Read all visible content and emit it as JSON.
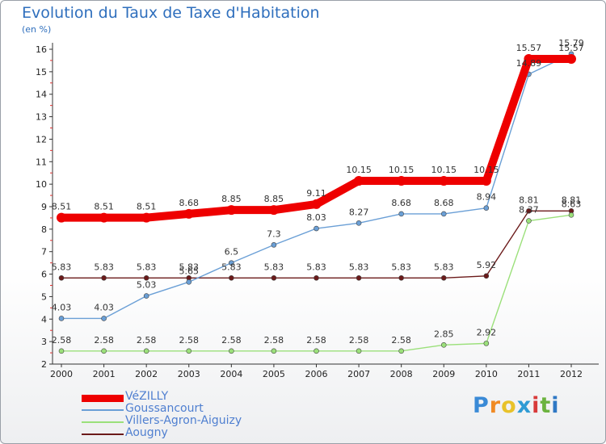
{
  "title": "Evolution du Taux de Taxe d'Habitation",
  "subtitle": "(en %)",
  "logo": {
    "letters": [
      "P",
      "r",
      "o",
      "x",
      "i",
      "t",
      "i"
    ],
    "colors": [
      "#3a8ad6",
      "#f08a24",
      "#e8c22a",
      "#2e9bd4",
      "#d83a3a",
      "#6cb33f",
      "#2f78c4"
    ]
  },
  "chart_data": {
    "type": "line",
    "title": "Evolution du Taux de Taxe d'Habitation",
    "ylabel": "(en %)",
    "xlabel": "",
    "x": [
      "2000",
      "2001",
      "2002",
      "2003",
      "2004",
      "2005",
      "2006",
      "2007",
      "2008",
      "2009",
      "2010",
      "2011",
      "2012"
    ],
    "ylim": [
      2,
      16
    ],
    "yticks": [
      "2",
      "3",
      "4",
      "5",
      "6",
      "7",
      "8",
      "9",
      "10",
      "11",
      "12",
      "13",
      "14",
      "15",
      "16"
    ],
    "grid": false,
    "legend_position": "bottom-left",
    "series": [
      {
        "name": "VéZILLY",
        "color": "#ee0000",
        "values": [
          8.51,
          8.51,
          8.51,
          8.68,
          8.85,
          8.85,
          9.11,
          10.15,
          10.15,
          10.15,
          10.15,
          15.57,
          15.57
        ],
        "labels": [
          "8.51",
          "8.51",
          "8.51",
          "8.68",
          "8.85",
          "8.85",
          "9.11",
          "10.15",
          "10.15",
          "10.15",
          "10.15",
          "15.57",
          "15.57"
        ]
      },
      {
        "name": "Goussancourt",
        "color": "#6a9fd6",
        "values": [
          4.03,
          4.03,
          5.03,
          5.65,
          6.5,
          7.3,
          8.03,
          8.27,
          8.68,
          8.68,
          8.94,
          14.89,
          15.79
        ],
        "labels": [
          "4.03",
          "4.03",
          "5.03",
          "5.65",
          "6.5",
          "7.3",
          "8.03",
          "8.27",
          "8.68",
          "8.68",
          "8.94",
          "14.89",
          "15.79"
        ]
      },
      {
        "name": "Villers-Agron-Aiguizy",
        "color": "#9be07a",
        "values": [
          2.58,
          2.58,
          2.58,
          2.58,
          2.58,
          2.58,
          2.58,
          2.58,
          2.58,
          2.85,
          2.92,
          8.37,
          8.63
        ],
        "labels": [
          "2.58",
          "2.58",
          "2.58",
          "2.58",
          "2.58",
          "2.58",
          "2.58",
          "2.58",
          "2.58",
          "2.85",
          "2.92",
          "8.37",
          "8.63"
        ]
      },
      {
        "name": "Aougny",
        "color": "#6b1a1a",
        "values": [
          5.83,
          5.83,
          5.83,
          5.83,
          5.83,
          5.83,
          5.83,
          5.83,
          5.83,
          5.83,
          5.92,
          8.81,
          8.81
        ],
        "labels": [
          "5.83",
          "5.83",
          "5.83",
          "5.83",
          "5.83",
          "5.83",
          "5.83",
          "5.83",
          "5.83",
          "5.83",
          "5.92",
          "8.81",
          "8.81"
        ]
      }
    ]
  }
}
